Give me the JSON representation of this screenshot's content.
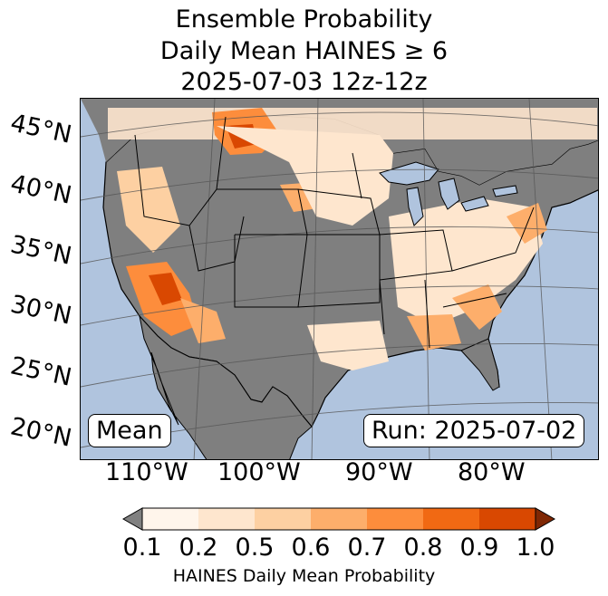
{
  "title": {
    "line1": "Ensemble Probability",
    "line2": "Daily Mean HAINES ≥ 6",
    "line3": "2025-07-03 12z-12z"
  },
  "map": {
    "lat_labels": [
      "45°N",
      "40°N",
      "35°N",
      "30°N",
      "25°N",
      "20°N"
    ],
    "lon_labels": [
      "110°W",
      "100°W",
      "90°W",
      "80°W"
    ],
    "stat_label": "Mean",
    "run_label": "Run: 2025-07-02"
  },
  "colorbar": {
    "ticks": [
      "0.1",
      "0.2",
      "0.5",
      "0.6",
      "0.7",
      "0.8",
      "0.9",
      "1.0"
    ],
    "colors": [
      "#fff5eb",
      "#fee6ce",
      "#fdd0a2",
      "#fdae6b",
      "#fd8d3c",
      "#f16913",
      "#d94801"
    ],
    "under_color": "#808080",
    "over_color": "#7f2704",
    "label": "HAINES Daily Mean Probability"
  },
  "colors": {
    "ocean": "#b0c4de",
    "land_none": "#7f7f7f",
    "grid": "#555555"
  }
}
